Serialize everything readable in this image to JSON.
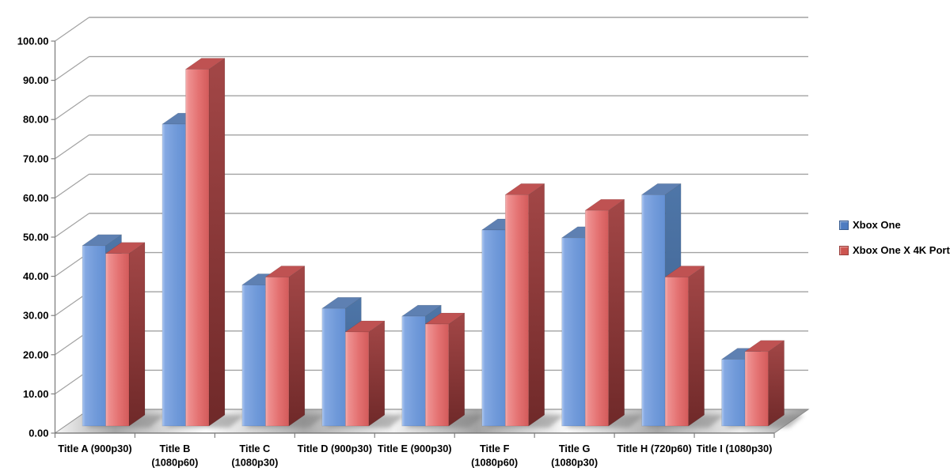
{
  "chart_data": {
    "type": "bar",
    "projection": "3d-clustered-column",
    "title": "",
    "xlabel": "",
    "ylabel": "",
    "ylim": [
      0,
      100
    ],
    "ytick_step": 10,
    "ytick_decimals": 2,
    "grid": true,
    "legend_position": "right",
    "categories": [
      {
        "lines": [
          "Title A (900p30)"
        ]
      },
      {
        "lines": [
          "Title B",
          "(1080p60)"
        ]
      },
      {
        "lines": [
          "Title C",
          "(1080p30)"
        ]
      },
      {
        "lines": [
          "Title D (900p30)"
        ]
      },
      {
        "lines": [
          "Title E (900p30)"
        ]
      },
      {
        "lines": [
          "Title F",
          "(1080p60)"
        ]
      },
      {
        "lines": [
          "Title G",
          "(1080p30)"
        ]
      },
      {
        "lines": [
          "Title H (720p60)"
        ]
      },
      {
        "lines": [
          "Title I (1080p30)"
        ]
      }
    ],
    "series": [
      {
        "name": "Xbox One",
        "swatch_color": "#4E7CC0",
        "values": [
          46,
          77,
          36,
          30,
          28,
          50,
          48,
          59,
          17
        ],
        "faces": {
          "front_stops": [
            "#AFC9F1",
            "#84A8E2",
            "#729BDA",
            "#6390D4"
          ],
          "top": "#5E80B2",
          "side_top": "#4E76A8",
          "side_bottom": "#3D5E8C"
        }
      },
      {
        "name": "Xbox One X 4K Port",
        "swatch_color": "#CD5550",
        "values": [
          44,
          91,
          38,
          24,
          26,
          59,
          55,
          38,
          19
        ],
        "faces": {
          "front_stops": [
            "#F6AFAF",
            "#EE9090",
            "#E47272",
            "#D35B5B"
          ],
          "top": "#BF5252",
          "side_top": "#A34747",
          "side_bottom": "#6F2929"
        }
      }
    ],
    "colors": {
      "gridline": "#A2A2A2",
      "axis": "#808080",
      "floor_edge": "#8F8F8F",
      "shadow": "#7A7A7A",
      "text": "#000000"
    }
  },
  "legend": {
    "items": [
      {
        "label": "Xbox One"
      },
      {
        "label": "Xbox One X 4K Port"
      }
    ]
  }
}
